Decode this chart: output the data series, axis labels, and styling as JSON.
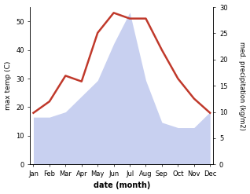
{
  "months": [
    "Jan",
    "Feb",
    "Mar",
    "Apr",
    "May",
    "Jun",
    "Jul",
    "Aug",
    "Sep",
    "Oct",
    "Nov",
    "Dec"
  ],
  "temp": [
    18,
    22,
    31,
    29,
    46,
    53,
    51,
    51,
    40,
    30,
    23,
    18
  ],
  "precip": [
    9,
    9,
    10,
    13,
    16,
    23,
    29,
    16,
    8,
    7,
    7,
    10
  ],
  "temp_ylim": [
    0,
    55
  ],
  "precip_ylim": [
    0,
    30
  ],
  "temp_color": "#c0392b",
  "precip_fill_color": "#c8d0f0",
  "xlabel": "date (month)",
  "ylabel_left": "max temp (C)",
  "ylabel_right": "med. precipitation (kg/m2)",
  "background_color": "#ffffff",
  "temp_linewidth": 1.8
}
